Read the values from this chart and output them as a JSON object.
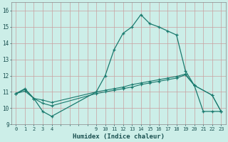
{
  "xlabel": "Humidex (Indice chaleur)",
  "bg_color": "#cceee8",
  "grid_color": "#c8a0a0",
  "line_color": "#1a7a6e",
  "xlim": [
    -0.5,
    23.5
  ],
  "ylim": [
    9.0,
    16.5
  ],
  "xticks_all": [
    0,
    1,
    2,
    3,
    4,
    5,
    6,
    7,
    8,
    9,
    10,
    11,
    12,
    13,
    14,
    15,
    16,
    17,
    18,
    19,
    20,
    21,
    22,
    23
  ],
  "xtick_labels": [
    "0",
    "1",
    "2",
    "3",
    "4",
    "",
    "",
    "",
    "",
    "9",
    "10",
    "11",
    "12",
    "13",
    "14",
    "15",
    "16",
    "17",
    "18",
    "19",
    "20",
    "21",
    "22",
    "23"
  ],
  "yticks": [
    9,
    10,
    11,
    12,
    13,
    14,
    15,
    16
  ],
  "series1_x": [
    0,
    1,
    2,
    3,
    4,
    9,
    10,
    11,
    12,
    13,
    14,
    15,
    16,
    17,
    18,
    19,
    20,
    21,
    22,
    23
  ],
  "series1_y": [
    10.9,
    11.2,
    10.6,
    9.8,
    9.5,
    11.0,
    12.0,
    13.6,
    14.6,
    15.0,
    15.75,
    15.2,
    15.0,
    14.75,
    14.5,
    12.3,
    11.4,
    9.8,
    9.8,
    9.8
  ],
  "series2_x": [
    0,
    1,
    2,
    3,
    4,
    9,
    10,
    11,
    12,
    13,
    14,
    15,
    16,
    17,
    18,
    19,
    20,
    22,
    23
  ],
  "series2_y": [
    10.9,
    11.15,
    10.6,
    10.5,
    10.35,
    11.0,
    11.1,
    11.2,
    11.3,
    11.45,
    11.55,
    11.65,
    11.75,
    11.85,
    11.95,
    12.1,
    11.4,
    10.8,
    9.8
  ],
  "series3_x": [
    0,
    1,
    2,
    3,
    4,
    9,
    10,
    11,
    12,
    13,
    14,
    15,
    16,
    17,
    18,
    19,
    20,
    22,
    23
  ],
  "series3_y": [
    10.9,
    11.05,
    10.6,
    10.3,
    10.15,
    10.9,
    11.0,
    11.1,
    11.2,
    11.3,
    11.45,
    11.55,
    11.65,
    11.75,
    11.85,
    12.05,
    11.4,
    10.8,
    9.8
  ]
}
